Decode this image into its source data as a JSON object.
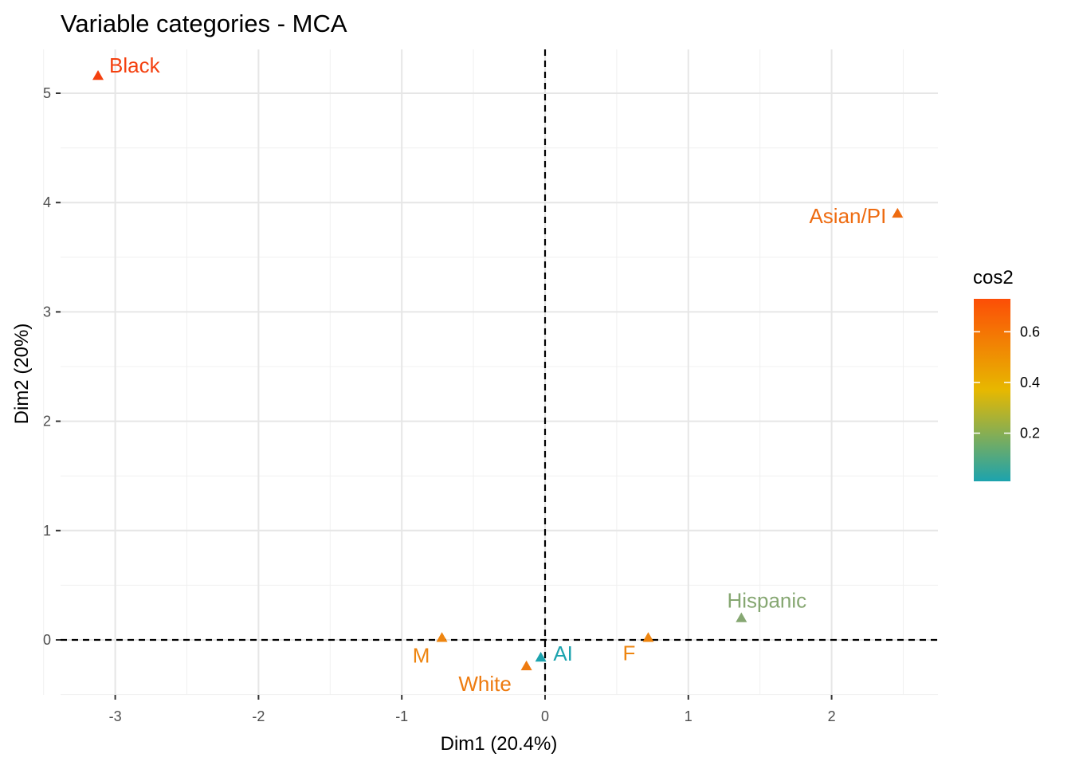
{
  "chart_data": {
    "type": "scatter",
    "title": "Variable categories - MCA",
    "xlabel": "Dim1 (20.4%)",
    "ylabel": "Dim2 (20%)",
    "xlim": [
      -3.4,
      2.7
    ],
    "ylim": [
      -0.5,
      5.4
    ],
    "x_ticks": [
      -3,
      -2,
      -1,
      0,
      1,
      2
    ],
    "y_ticks": [
      0,
      1,
      2,
      3,
      4,
      5
    ],
    "grid": true,
    "reference_lines": {
      "x": 0,
      "y": 0,
      "style": "dashed"
    },
    "points": [
      {
        "label": "Black",
        "x": -3.12,
        "y": 5.16,
        "cos2": 0.72,
        "color": "#F4400F"
      },
      {
        "label": "Asian/PI",
        "x": 2.46,
        "y": 3.9,
        "cos2": 0.62,
        "color": "#EE6B10"
      },
      {
        "label": "Hispanic",
        "x": 1.37,
        "y": 0.2,
        "cos2": 0.22,
        "color": "#86A772"
      },
      {
        "label": "M",
        "x": -0.72,
        "y": 0.02,
        "cos2": 0.5,
        "color": "#EE8510"
      },
      {
        "label": "F",
        "x": 0.72,
        "y": 0.02,
        "cos2": 0.5,
        "color": "#EE8510"
      },
      {
        "label": "White",
        "x": -0.13,
        "y": -0.24,
        "cos2": 0.55,
        "color": "#EE7B10"
      },
      {
        "label": "AI",
        "x": -0.03,
        "y": -0.16,
        "cos2": 0.03,
        "color": "#1CA3AE"
      }
    ],
    "legend": {
      "title": "cos2",
      "ticks": [
        "0.2",
        "0.4",
        "0.6"
      ],
      "range": [
        0.01,
        0.73
      ],
      "colors": [
        "#1CA3AE",
        "#E7B800",
        "#FC4E07"
      ],
      "placement": "right"
    }
  }
}
